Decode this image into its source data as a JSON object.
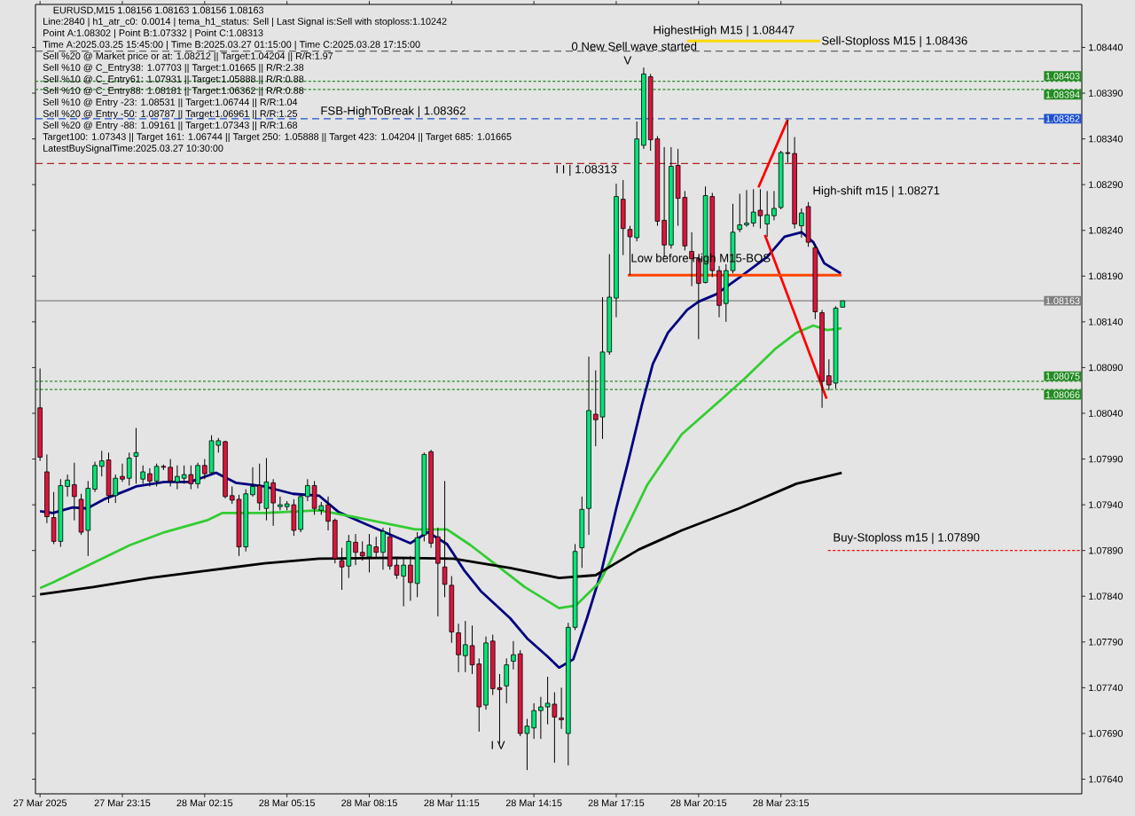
{
  "chart_data": {
    "type": "candlestick",
    "title": "EURUSD,M15  1.08156 1.08163 1.08156 1.08163",
    "xlim": [
      "2025-03-27T20:05",
      "2025-03-29T10:13"
    ],
    "ylim": [
      1.07624,
      1.08487
    ],
    "xticks": [
      {
        "value": "2025-03-27T20:15",
        "label": "27 Mar 2025"
      },
      {
        "value": "2025-03-27T23:15",
        "label": "27 Mar 23:15"
      },
      {
        "value": "2025-03-28T02:15",
        "label": "28 Mar 02:15"
      },
      {
        "value": "2025-03-28T05:15",
        "label": "28 Mar 05:15"
      },
      {
        "value": "2025-03-28T08:15",
        "label": "28 Mar 08:15"
      },
      {
        "value": "2025-03-28T11:15",
        "label": "28 Mar 11:15"
      },
      {
        "value": "2025-03-28T14:15",
        "label": "28 Mar 14:15"
      },
      {
        "value": "2025-03-28T17:15",
        "label": "28 Mar 17:15"
      },
      {
        "value": "2025-03-28T20:15",
        "label": "28 Mar 20:15"
      },
      {
        "value": "2025-03-28T23:15",
        "label": "28 Mar 23:15"
      }
    ],
    "yticks": [
      {
        "value": 1.0764,
        "label": "1.07640"
      },
      {
        "value": 1.0769,
        "label": "1.07690"
      },
      {
        "value": 1.0774,
        "label": "1.07740"
      },
      {
        "value": 1.0779,
        "label": "1.07790"
      },
      {
        "value": 1.0784,
        "label": "1.07840"
      },
      {
        "value": 1.0789,
        "label": "1.07890"
      },
      {
        "value": 1.0794,
        "label": "1.07940"
      },
      {
        "value": 1.0799,
        "label": "1.07990"
      },
      {
        "value": 1.0804,
        "label": "1.08040"
      },
      {
        "value": 1.0809,
        "label": "1.08090"
      },
      {
        "value": 1.0814,
        "label": "1.08140"
      },
      {
        "value": 1.0819,
        "label": "1.08190"
      },
      {
        "value": 1.0824,
        "label": "1.08240"
      },
      {
        "value": 1.0829,
        "label": "1.08290"
      },
      {
        "value": 1.0834,
        "label": "1.08340"
      },
      {
        "value": 1.0839,
        "label": "1.08390"
      },
      {
        "value": 1.0844,
        "label": "1.08440"
      }
    ],
    "x": [
      "2025-03-27T20:15",
      "2025-03-27T20:30",
      "2025-03-27T20:45",
      "2025-03-27T21:00",
      "2025-03-27T21:15",
      "2025-03-27T21:30",
      "2025-03-27T21:45",
      "2025-03-27T22:00",
      "2025-03-27T22:15",
      "2025-03-27T22:30",
      "2025-03-27T22:45",
      "2025-03-27T23:00",
      "2025-03-27T23:15",
      "2025-03-27T23:30",
      "2025-03-27T23:45",
      "2025-03-28T00:00",
      "2025-03-28T00:15",
      "2025-03-28T00:30",
      "2025-03-28T00:45",
      "2025-03-28T01:00",
      "2025-03-28T01:15",
      "2025-03-28T01:30",
      "2025-03-28T01:45",
      "2025-03-28T02:00",
      "2025-03-28T02:15",
      "2025-03-28T02:30",
      "2025-03-28T02:45",
      "2025-03-28T03:00",
      "2025-03-28T03:15",
      "2025-03-28T03:30",
      "2025-03-28T03:45",
      "2025-03-28T04:00",
      "2025-03-28T04:15",
      "2025-03-28T04:30",
      "2025-03-28T04:45",
      "2025-03-28T05:00",
      "2025-03-28T05:15",
      "2025-03-28T05:30",
      "2025-03-28T05:45",
      "2025-03-28T06:00",
      "2025-03-28T06:15",
      "2025-03-28T06:30",
      "2025-03-28T06:45",
      "2025-03-28T07:00",
      "2025-03-28T07:15",
      "2025-03-28T07:30",
      "2025-03-28T07:45",
      "2025-03-28T08:00",
      "2025-03-28T08:15",
      "2025-03-28T08:30",
      "2025-03-28T08:45",
      "2025-03-28T09:00",
      "2025-03-28T09:15",
      "2025-03-28T09:30",
      "2025-03-28T09:45",
      "2025-03-28T10:00",
      "2025-03-28T10:15",
      "2025-03-28T10:30",
      "2025-03-28T10:45",
      "2025-03-28T11:00",
      "2025-03-28T11:15",
      "2025-03-28T11:30",
      "2025-03-28T11:45",
      "2025-03-28T12:00",
      "2025-03-28T12:15",
      "2025-03-28T12:30",
      "2025-03-28T12:45",
      "2025-03-28T13:00",
      "2025-03-28T13:15",
      "2025-03-28T13:30",
      "2025-03-28T13:45",
      "2025-03-28T14:00",
      "2025-03-28T14:15",
      "2025-03-28T14:30",
      "2025-03-28T14:45",
      "2025-03-28T15:00",
      "2025-03-28T15:15",
      "2025-03-28T15:30",
      "2025-03-28T15:45",
      "2025-03-28T16:00",
      "2025-03-28T16:15",
      "2025-03-28T16:30",
      "2025-03-28T16:45",
      "2025-03-28T17:00",
      "2025-03-28T17:15",
      "2025-03-28T17:30",
      "2025-03-28T17:45",
      "2025-03-28T18:00",
      "2025-03-28T18:15",
      "2025-03-28T18:30",
      "2025-03-28T18:45",
      "2025-03-28T19:00",
      "2025-03-28T19:15",
      "2025-03-28T19:30",
      "2025-03-28T19:45",
      "2025-03-28T20:00",
      "2025-03-28T20:15",
      "2025-03-28T20:30",
      "2025-03-28T20:45",
      "2025-03-28T21:00",
      "2025-03-28T21:15",
      "2025-03-28T21:30",
      "2025-03-28T21:45",
      "2025-03-28T22:00",
      "2025-03-28T22:15",
      "2025-03-28T22:30",
      "2025-03-28T22:45",
      "2025-03-28T23:00",
      "2025-03-28T23:15",
      "2025-03-28T23:30",
      "2025-03-28T23:45",
      "2025-03-29T00:00",
      "2025-03-29T00:15",
      "2025-03-29T00:30",
      "2025-03-29T00:45",
      "2025-03-29T01:00",
      "2025-03-29T01:15",
      "2025-03-29T01:30"
    ],
    "ohlc": [
      [
        1.08046,
        1.08089,
        1.07988,
        1.07992
      ],
      [
        1.07976,
        1.07995,
        1.0792,
        1.07927
      ],
      [
        1.07926,
        1.07954,
        1.07897,
        1.079
      ],
      [
        1.079,
        1.07968,
        1.07894,
        1.07961
      ],
      [
        1.0796,
        1.07973,
        1.07949,
        1.07967
      ],
      [
        1.07962,
        1.07986,
        1.07923,
        1.07949
      ],
      [
        1.07946,
        1.07952,
        1.07907,
        1.0791
      ],
      [
        1.07912,
        1.07966,
        1.07884,
        1.07958
      ],
      [
        1.07957,
        1.07987,
        1.07954,
        1.07983
      ],
      [
        1.07982,
        1.07999,
        1.07971,
        1.07988
      ],
      [
        1.07989,
        1.07997,
        1.07942,
        1.0795
      ],
      [
        1.0795,
        1.07973,
        1.07942,
        1.07969
      ],
      [
        1.07971,
        1.07985,
        1.07965,
        1.07968
      ],
      [
        1.07969,
        1.07997,
        1.07961,
        1.07991
      ],
      [
        1.07993,
        1.08024,
        1.07963,
        1.07997
      ],
      [
        1.07968,
        1.07983,
        1.07963,
        1.07976
      ],
      [
        1.07974,
        1.0798,
        1.0796,
        1.07966
      ],
      [
        1.07966,
        1.07985,
        1.0796,
        1.07982
      ],
      [
        1.07982,
        1.07984,
        1.07978,
        1.07981
      ],
      [
        1.07981,
        1.0799,
        1.0796,
        1.07966
      ],
      [
        1.07965,
        1.07983,
        1.07957,
        1.07971
      ],
      [
        1.07969,
        1.07983,
        1.07963,
        1.07973
      ],
      [
        1.07973,
        1.07983,
        1.07957,
        1.07963
      ],
      [
        1.07963,
        1.07986,
        1.07958,
        1.07983
      ],
      [
        1.07983,
        1.0799,
        1.07968,
        1.07974
      ],
      [
        1.07975,
        1.08016,
        1.07973,
        1.0801
      ],
      [
        1.08005,
        1.08013,
        1.07997,
        1.0801
      ],
      [
        1.08009,
        1.0801,
        1.07947,
        1.07949
      ],
      [
        1.0795,
        1.0796,
        1.07941,
        1.07945
      ],
      [
        1.07946,
        1.07951,
        1.07884,
        1.07894
      ],
      [
        1.07894,
        1.07957,
        1.07889,
        1.07952
      ],
      [
        1.07951,
        1.07981,
        1.07949,
        1.0796
      ],
      [
        1.07961,
        1.07985,
        1.07934,
        1.07942
      ],
      [
        1.07936,
        1.07991,
        1.07923,
        1.07965
      ],
      [
        1.07964,
        1.07968,
        1.07917,
        1.07942
      ],
      [
        1.07938,
        1.07949,
        1.07934,
        1.0794
      ],
      [
        1.07938,
        1.07944,
        1.07934,
        1.07941
      ],
      [
        1.0794,
        1.07946,
        1.07906,
        1.07912
      ],
      [
        1.07913,
        1.07952,
        1.0791,
        1.07949
      ],
      [
        1.07949,
        1.07968,
        1.07944,
        1.07961
      ],
      [
        1.07961,
        1.07966,
        1.07929,
        1.07936
      ],
      [
        1.07934,
        1.07943,
        1.07929,
        1.07939
      ],
      [
        1.0794,
        1.07949,
        1.07912,
        1.07922
      ],
      [
        1.07923,
        1.07925,
        1.07876,
        1.07881
      ],
      [
        1.07879,
        1.07893,
        1.07847,
        1.07872
      ],
      [
        1.07873,
        1.07907,
        1.0786,
        1.079
      ],
      [
        1.07899,
        1.07908,
        1.07874,
        1.07888
      ],
      [
        1.07888,
        1.079,
        1.07879,
        1.07884
      ],
      [
        1.07883,
        1.07908,
        1.07866,
        1.07896
      ],
      [
        1.07894,
        1.07905,
        1.07881,
        1.07888
      ],
      [
        1.07888,
        1.07915,
        1.07869,
        1.07911
      ],
      [
        1.07905,
        1.07915,
        1.07869,
        1.07873
      ],
      [
        1.07874,
        1.07883,
        1.07859,
        1.07863
      ],
      [
        1.07862,
        1.07881,
        1.07829,
        1.07874
      ],
      [
        1.07874,
        1.07884,
        1.07835,
        1.07855
      ],
      [
        1.07854,
        1.0791,
        1.07839,
        1.07904
      ],
      [
        1.07907,
        1.07997,
        1.079,
        1.07995
      ],
      [
        1.07998,
        1.08,
        1.07893,
        1.07898
      ],
      [
        1.07905,
        1.07915,
        1.07818,
        1.07876
      ],
      [
        1.07872,
        1.07966,
        1.07839,
        1.07853
      ],
      [
        1.07852,
        1.07862,
        1.07789,
        1.07801
      ],
      [
        1.078,
        1.0781,
        1.07757,
        1.07776
      ],
      [
        1.07775,
        1.07813,
        1.07757,
        1.07787
      ],
      [
        1.07786,
        1.07808,
        1.07755,
        1.07765
      ],
      [
        1.07766,
        1.07772,
        1.07692,
        1.07719
      ],
      [
        1.07721,
        1.07796,
        1.07716,
        1.07789
      ],
      [
        1.07791,
        1.07798,
        1.07732,
        1.07739
      ],
      [
        1.0774,
        1.07755,
        1.07679,
        1.07738
      ],
      [
        1.07742,
        1.07772,
        1.07723,
        1.07765
      ],
      [
        1.07769,
        1.07791,
        1.0776,
        1.07776
      ],
      [
        1.07777,
        1.07781,
        1.07687,
        1.0769
      ],
      [
        1.0769,
        1.07706,
        1.0765,
        1.07698
      ],
      [
        1.07696,
        1.07723,
        1.07684,
        1.07715
      ],
      [
        1.07715,
        1.0773,
        1.07684,
        1.07719
      ],
      [
        1.07719,
        1.07752,
        1.077,
        1.07723
      ],
      [
        1.07722,
        1.07735,
        1.07658,
        1.07708
      ],
      [
        1.07707,
        1.0774,
        1.07695,
        1.07705
      ],
      [
        1.0769,
        1.07811,
        1.07655,
        1.07806
      ],
      [
        1.07806,
        1.07897,
        1.07803,
        1.07889
      ],
      [
        1.07893,
        1.07949,
        1.07871,
        1.07935
      ],
      [
        1.07936,
        1.08102,
        1.07907,
        1.08043
      ],
      [
        1.08039,
        1.08087,
        1.08004,
        1.08033
      ],
      [
        1.08036,
        1.08167,
        1.08012,
        1.08107
      ],
      [
        1.08107,
        1.08214,
        1.08104,
        1.08167
      ],
      [
        1.08166,
        1.08291,
        1.08145,
        1.08277
      ],
      [
        1.08274,
        1.08295,
        1.08213,
        1.08242
      ],
      [
        1.08241,
        1.08245,
        1.08191,
        1.08233
      ],
      [
        1.08232,
        1.08359,
        1.08228,
        1.0834
      ],
      [
        1.08333,
        1.08418,
        1.08329,
        1.08411
      ],
      [
        1.08408,
        1.08411,
        1.08327,
        1.08339
      ],
      [
        1.0834,
        1.08343,
        1.08245,
        1.0825
      ],
      [
        1.08251,
        1.08331,
        1.08211,
        1.08224
      ],
      [
        1.08224,
        1.08331,
        1.0822,
        1.0831
      ],
      [
        1.08311,
        1.08329,
        1.08245,
        1.08275
      ],
      [
        1.08276,
        1.08283,
        1.08218,
        1.08223
      ],
      [
        1.08217,
        1.08238,
        1.08179,
        1.08209
      ],
      [
        1.08209,
        1.08211,
        1.08121,
        1.08182
      ],
      [
        1.08183,
        1.08288,
        1.08182,
        1.08278
      ],
      [
        1.08277,
        1.08281,
        1.08189,
        1.08196
      ],
      [
        1.08196,
        1.08201,
        1.08145,
        1.08158
      ],
      [
        1.0816,
        1.08203,
        1.0814,
        1.08196
      ],
      [
        1.08196,
        1.08269,
        1.08193,
        1.08238
      ],
      [
        1.08241,
        1.0828,
        1.08238,
        1.08246
      ],
      [
        1.08246,
        1.08284,
        1.08244,
        1.08248
      ],
      [
        1.08248,
        1.08285,
        1.08244,
        1.0826
      ],
      [
        1.08262,
        1.08285,
        1.08242,
        1.08256
      ],
      [
        1.08247,
        1.08283,
        1.08233,
        1.08257
      ],
      [
        1.08256,
        1.08283,
        1.08251,
        1.08264
      ],
      [
        1.08265,
        1.08327,
        1.08263,
        1.08325
      ],
      [
        1.08325,
        1.08361,
        1.08314,
        1.08324
      ],
      [
        1.08324,
        1.08342,
        1.08242,
        1.08247
      ],
      [
        1.08245,
        1.08264,
        1.08232,
        1.08259
      ],
      [
        1.08266,
        1.08271,
        1.08222,
        1.08227
      ],
      [
        1.08221,
        1.08225,
        1.08143,
        1.08151
      ],
      [
        1.0815,
        1.08153,
        1.08046,
        1.08075
      ],
      [
        1.08081,
        1.08099,
        1.08065,
        1.08071
      ],
      [
        1.08073,
        1.08157,
        1.08067,
        1.08155
      ],
      [
        1.08156,
        1.08163,
        1.08156,
        1.08163
      ]
    ],
    "series": [
      {
        "type": "line",
        "color": "#000080",
        "x": [
          "2025-03-27T20:15",
          "2025-03-27T20:43",
          "2025-03-27T21:26",
          "2025-03-27T21:58",
          "2025-03-27T22:35",
          "2025-03-27T23:26",
          "2025-03-27T23:45",
          "2025-03-28T00:47",
          "2025-03-28T01:43",
          "2025-03-28T02:40",
          "2025-03-28T03:23",
          "2025-03-28T04:26",
          "2025-03-28T05:28",
          "2025-03-28T06:25",
          "2025-03-28T07:08",
          "2025-03-28T08:11",
          "2025-03-28T09:45",
          "2025-03-28T10:23",
          "2025-03-28T11:05",
          "2025-03-28T11:43",
          "2025-03-28T12:20",
          "2025-03-28T13:23",
          "2025-03-28T14:00",
          "2025-03-28T14:45",
          "2025-03-28T15:10",
          "2025-03-28T15:41",
          "2025-03-28T16:11",
          "2025-03-28T16:43",
          "2025-03-28T17:15",
          "2025-03-28T17:40",
          "2025-03-28T18:11",
          "2025-03-28T18:35",
          "2025-03-28T19:08",
          "2025-03-28T19:50",
          "2025-03-28T20:15",
          "2025-03-28T20:53",
          "2025-03-28T21:43",
          "2025-03-28T22:45",
          "2025-03-28T23:23",
          "2025-03-29T00:00",
          "2025-03-29T00:26",
          "2025-03-29T00:50",
          "2025-03-29T01:26"
        ],
        "values": [
          1.07933,
          1.07931,
          1.07937,
          1.07936,
          1.07946,
          1.07956,
          1.0796,
          1.07965,
          1.07965,
          1.07975,
          1.07964,
          1.0796,
          1.07952,
          1.0795,
          1.07932,
          1.07918,
          1.07898,
          1.0791,
          1.07897,
          1.07868,
          1.07845,
          1.07816,
          1.07794,
          1.07774,
          1.07762,
          1.07771,
          1.07816,
          1.07868,
          1.07936,
          1.07985,
          1.08049,
          1.08094,
          1.08128,
          1.08153,
          1.08162,
          1.0817,
          1.08188,
          1.08211,
          1.08233,
          1.08238,
          1.08227,
          1.08204,
          1.08193
        ]
      },
      {
        "type": "line",
        "color": "#32cd32",
        "x": [
          "2025-03-27T20:15",
          "2025-03-27T20:43",
          "2025-03-27T21:20",
          "2025-03-27T22:30",
          "2025-03-27T23:32",
          "2025-03-28T00:47",
          "2025-03-28T02:20",
          "2025-03-28T02:53",
          "2025-03-28T04:26",
          "2025-03-28T06:25",
          "2025-03-28T07:40",
          "2025-03-28T09:56",
          "2025-03-28T11:05",
          "2025-03-28T11:56",
          "2025-03-28T12:53",
          "2025-03-28T13:55",
          "2025-03-28T15:10",
          "2025-03-28T15:47",
          "2025-03-28T16:38",
          "2025-03-28T17:02",
          "2025-03-28T18:23",
          "2025-03-28T19:38",
          "2025-03-28T21:00",
          "2025-03-28T21:56",
          "2025-03-28T23:04",
          "2025-03-28T23:49",
          "2025-03-29T00:26",
          "2025-03-29T00:56",
          "2025-03-29T01:28"
        ],
        "values": [
          1.07849,
          1.07855,
          1.07864,
          1.07881,
          1.07896,
          1.0791,
          1.07923,
          1.07931,
          1.07931,
          1.07934,
          1.07927,
          1.07913,
          1.07913,
          1.07896,
          1.07874,
          1.0785,
          1.07827,
          1.0783,
          1.07855,
          1.07878,
          1.07962,
          1.08017,
          1.08053,
          1.08078,
          1.08111,
          1.08128,
          1.08136,
          1.08131,
          1.08133
        ]
      },
      {
        "type": "line",
        "color": "#000000",
        "x": [
          "2025-03-27T20:15",
          "2025-03-27T22:11",
          "2025-03-28T00:15",
          "2025-03-28T02:20",
          "2025-03-28T04:26",
          "2025-03-28T06:25",
          "2025-03-28T09:13",
          "2025-03-28T11:19",
          "2025-03-28T13:23",
          "2025-03-28T15:10",
          "2025-03-28T16:30",
          "2025-03-28T18:04",
          "2025-03-28T19:38",
          "2025-03-28T21:43",
          "2025-03-28T23:49",
          "2025-03-29T01:28"
        ],
        "values": [
          1.07842,
          1.0785,
          1.0786,
          1.07868,
          1.07876,
          1.07881,
          1.07882,
          1.07881,
          1.07871,
          1.0786,
          1.07863,
          1.07891,
          1.07912,
          1.07936,
          1.07963,
          1.07975
        ]
      },
      {
        "type": "line",
        "color": "#ff0000",
        "x": [
          "2025-03-28T22:26",
          "2025-03-28T23:30"
        ],
        "values": [
          1.08287,
          1.08361
        ]
      },
      {
        "type": "line",
        "color": "#ff0000",
        "x": [
          "2025-03-28T22:40",
          "2025-03-29T00:55"
        ],
        "values": [
          1.08235,
          1.08056
        ]
      },
      {
        "type": "line",
        "color": "#ff4500",
        "x": [
          "2025-03-28T17:40",
          "2025-03-29T01:28"
        ],
        "values": [
          1.08191,
          1.08191
        ]
      },
      {
        "type": "line",
        "color": "#ffd700",
        "x": [
          "2025-03-28T19:50",
          "2025-03-29T00:41"
        ],
        "values": [
          1.08447,
          1.08447
        ]
      },
      {
        "type": "line",
        "color": "#ff0000",
        "line_style": "dotted",
        "x": [
          "2025-03-29T00:58",
          "2025-03-29T10:13"
        ],
        "values": [
          1.0789,
          1.0789
        ]
      }
    ],
    "ref_lines": [
      {
        "axis": "y",
        "value": 1.08436,
        "color": "#606060",
        "line_style": "dashed"
      },
      {
        "axis": "y",
        "value": 1.08403,
        "label": "1.08403",
        "color": "#228b22",
        "line_style": "dotted"
      },
      {
        "axis": "y",
        "value": 1.08394,
        "label": "1.08394",
        "color": "#228b22",
        "line_style": "dotted"
      },
      {
        "axis": "y",
        "value": 1.08362,
        "label": "1.08362",
        "color": "#1e50d0",
        "line_style": "dashed"
      },
      {
        "axis": "y",
        "value": 1.08313,
        "color": "#b22222",
        "line_style": "dashed"
      },
      {
        "axis": "y",
        "value": 1.08163,
        "label": "1.08163",
        "color": "#808080",
        "line_style": "solid"
      },
      {
        "axis": "y",
        "value": 1.08075,
        "label": "1.08075",
        "color": "#228b22",
        "line_style": "dotted"
      },
      {
        "axis": "y",
        "value": 1.08066,
        "label": "1.08066",
        "color": "#228b22",
        "line_style": "dotted"
      }
    ],
    "annotations": [
      "Line:2840 | h1_atr_c0: 0.0014 | tema_h1_status: Sell | Last Signal is:Sell with stoploss:1.10242",
      "Point A:1.08302 | Point B:1.07332 | Point C:1.08313",
      "Time A:2025.03.25 15:45:00 | Time B:2025.03.27 01:15:00 | Time C:2025.03.28 17:15:00",
      "Sell %20 @ Market price or at: 1.08212 || Target:1.04204 || R/R:1.97",
      "Sell %10 @ C_Entry38: 1.07703 || Target:1.01665 || R/R:2.38",
      "Sell %10 @ C_Entry61: 1.07931 || Target:1.05888 || R/R:0.88",
      "Sell %10 @ C_Entry88: 1.08181 || Target:1.06362 || R/R:0.88",
      "Sell %10 @ Entry -23: 1.08531 || Target:1.06744 || R/R:1.04",
      "Sell %20 @ Entry -50: 1.08787 || Target:1.06961 || R/R:1.25",
      "Sell %20 @ Entry -88: 1.09161 || Target:1.07343 || R/R:1.68",
      "Target100: 1.07343 || Target 161: 1.06744 || Target 250: 1.05888 || Target 423: 1.04204 || Target 685: 1.01665",
      "LatestBuySignalTime:2025.03.27 10:30:00",
      "HighestHigh  M15 | 1.08447",
      "0 New Sell wave started",
      "Sell-Stoploss M15 | 1.08436",
      "FSB-HighToBreak | 1.08362",
      "I I | 1.08313",
      "High-shift m15 | 1.08271",
      "Low before High  M15-BOS",
      "Buy-Stoploss m15 | 1.07890",
      "V",
      "I V"
    ]
  }
}
